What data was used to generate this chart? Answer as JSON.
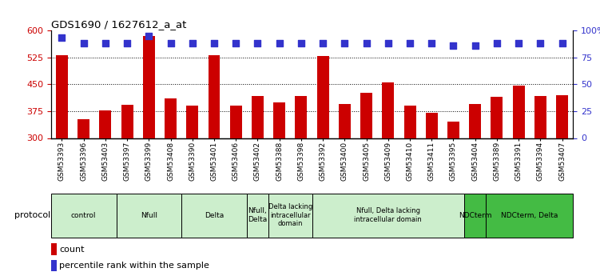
{
  "title": "GDS1690 / 1627612_a_at",
  "samples": [
    "GSM53393",
    "GSM53396",
    "GSM53403",
    "GSM53397",
    "GSM53399",
    "GSM53408",
    "GSM53390",
    "GSM53401",
    "GSM53406",
    "GSM53402",
    "GSM53388",
    "GSM53398",
    "GSM53392",
    "GSM53400",
    "GSM53405",
    "GSM53409",
    "GSM53410",
    "GSM53411",
    "GSM53395",
    "GSM53404",
    "GSM53389",
    "GSM53391",
    "GSM53394",
    "GSM53407"
  ],
  "counts": [
    530,
    352,
    378,
    393,
    585,
    410,
    390,
    530,
    390,
    418,
    400,
    418,
    528,
    395,
    425,
    455,
    390,
    370,
    345,
    395,
    415,
    445,
    418,
    420
  ],
  "percentiles": [
    93,
    88,
    88,
    88,
    95,
    88,
    88,
    88,
    88,
    88,
    88,
    88,
    88,
    88,
    88,
    88,
    88,
    88,
    86,
    86,
    88,
    88,
    88,
    88
  ],
  "bar_color": "#cc0000",
  "dot_color": "#3333cc",
  "ylim_left": [
    300,
    600
  ],
  "ylim_right": [
    0,
    100
  ],
  "yticks_left": [
    300,
    375,
    450,
    525,
    600
  ],
  "yticks_right": [
    0,
    25,
    50,
    75,
    100
  ],
  "ytick_labels_right": [
    "0",
    "25",
    "50",
    "75",
    "100%"
  ],
  "groups": [
    {
      "label": "control",
      "start": 0,
      "end": 3,
      "color": "#cceecc"
    },
    {
      "label": "Nfull",
      "start": 3,
      "end": 6,
      "color": "#cceecc"
    },
    {
      "label": "Delta",
      "start": 6,
      "end": 9,
      "color": "#cceecc"
    },
    {
      "label": "Nfull,\nDelta",
      "start": 9,
      "end": 10,
      "color": "#cceecc"
    },
    {
      "label": "Delta lacking\nintracellular\ndomain",
      "start": 10,
      "end": 12,
      "color": "#cceecc"
    },
    {
      "label": "Nfull, Delta lacking\nintracellular domain",
      "start": 12,
      "end": 19,
      "color": "#cceecc"
    },
    {
      "label": "NDCterm",
      "start": 19,
      "end": 20,
      "color": "#44bb44"
    },
    {
      "label": "NDCterm, Delta",
      "start": 20,
      "end": 24,
      "color": "#44bb44"
    }
  ],
  "bar_width": 0.55,
  "dot_size": 40,
  "dot_marker": "s",
  "grid_linestyle": ":",
  "grid_color": "#000000",
  "background_color": "#ffffff",
  "tick_color_left": "#cc0000",
  "tick_color_right": "#3333cc",
  "protocol_label": "protocol"
}
